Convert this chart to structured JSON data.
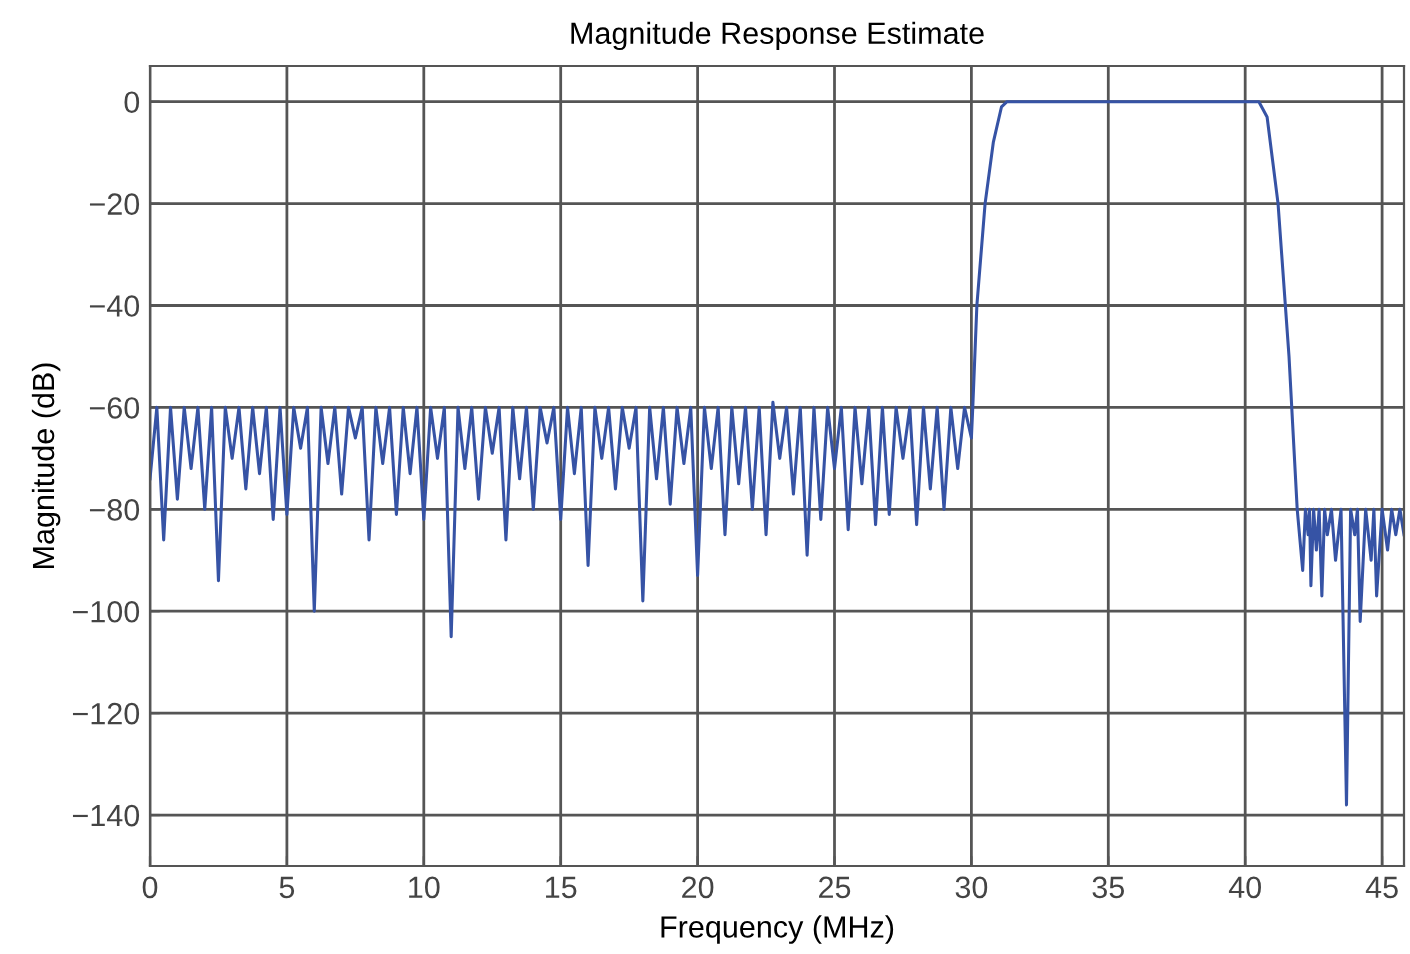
{
  "chart_data": {
    "type": "line",
    "title": "Magnitude Response Estimate",
    "xlabel": "Frequency (MHz)",
    "ylabel": "Magnitude (dB)",
    "x": [
      0.0,
      0.25,
      0.5,
      0.75,
      1.0,
      1.25,
      1.5,
      1.75,
      2.0,
      2.25,
      2.5,
      2.75,
      3.0,
      3.25,
      3.5,
      3.75,
      4.0,
      4.25,
      4.5,
      4.75,
      5.0,
      5.25,
      5.5,
      5.75,
      6.0,
      6.25,
      6.5,
      6.75,
      7.0,
      7.25,
      7.5,
      7.75,
      8.0,
      8.25,
      8.5,
      8.75,
      9.0,
      9.25,
      9.5,
      9.75,
      10.0,
      10.25,
      10.5,
      10.75,
      11.0,
      11.25,
      11.5,
      11.75,
      12.0,
      12.25,
      12.5,
      12.75,
      13.0,
      13.25,
      13.5,
      13.75,
      14.0,
      14.25,
      14.5,
      14.75,
      15.0,
      15.25,
      15.5,
      15.75,
      16.0,
      16.25,
      16.5,
      16.75,
      17.0,
      17.25,
      17.5,
      17.75,
      18.0,
      18.25,
      18.5,
      18.75,
      19.0,
      19.25,
      19.5,
      19.75,
      20.0,
      20.25,
      20.5,
      20.75,
      21.0,
      21.25,
      21.5,
      21.75,
      22.0,
      22.25,
      22.5,
      22.75,
      23.0,
      23.25,
      23.5,
      23.75,
      24.0,
      24.25,
      24.5,
      24.75,
      25.0,
      25.25,
      25.5,
      25.75,
      26.0,
      26.25,
      26.5,
      26.75,
      27.0,
      27.25,
      27.5,
      27.75,
      28.0,
      28.25,
      28.5,
      28.75,
      29.0,
      29.25,
      29.5,
      29.75,
      30.0,
      30.05,
      30.2,
      30.5,
      30.8,
      31.1,
      31.3,
      32.0,
      33.0,
      34.0,
      35.0,
      36.0,
      37.0,
      38.0,
      39.0,
      40.0,
      40.5,
      40.8,
      41.2,
      41.6,
      41.9,
      42.1,
      42.2,
      42.3,
      42.35,
      42.4,
      42.5,
      42.6,
      42.7,
      42.8,
      42.9,
      43.0,
      43.15,
      43.3,
      43.5,
      43.7,
      43.85,
      44.0,
      44.1,
      44.2,
      44.4,
      44.6,
      44.7,
      44.8,
      45.0,
      45.2,
      45.35,
      45.5,
      45.65,
      45.8
    ],
    "values": [
      -74,
      -60,
      -86,
      -60,
      -78,
      -60,
      -72,
      -60,
      -80,
      -60,
      -94,
      -60,
      -70,
      -60,
      -76,
      -60,
      -73,
      -60,
      -82,
      -60,
      -81,
      -60,
      -68,
      -60,
      -100,
      -60,
      -71,
      -60,
      -77,
      -60,
      -66,
      -60,
      -86,
      -60,
      -71,
      -60,
      -81,
      -60,
      -73,
      -60,
      -82,
      -60,
      -70,
      -60,
      -105,
      -60,
      -72,
      -60,
      -78,
      -60,
      -69,
      -60,
      -86,
      -60,
      -74,
      -60,
      -80,
      -60,
      -67,
      -60,
      -82,
      -60,
      -73,
      -60,
      -91,
      -60,
      -70,
      -60,
      -76,
      -60,
      -68,
      -60,
      -98,
      -60,
      -74,
      -60,
      -79,
      -60,
      -71,
      -60,
      -93,
      -60,
      -72,
      -60,
      -85,
      -60,
      -75,
      -60,
      -80,
      -60,
      -85,
      -59,
      -70,
      -60,
      -77,
      -60,
      -89,
      -60,
      -82,
      -60,
      -72,
      -60,
      -84,
      -60,
      -75,
      -60,
      -83,
      -60,
      -81,
      -60,
      -70,
      -60,
      -83,
      -60,
      -76,
      -60,
      -80,
      -60,
      -72,
      -60,
      -66,
      -60,
      -40,
      -20,
      -8,
      -1,
      0,
      0,
      0,
      0,
      0,
      0,
      0,
      0,
      0,
      0,
      0,
      -3,
      -20,
      -50,
      -80,
      -92,
      -80,
      -85,
      -80,
      -95,
      -80,
      -88,
      -80,
      -97,
      -80,
      -85,
      -80,
      -90,
      -80,
      -138,
      -80,
      -85,
      -80,
      -102,
      -80,
      -90,
      -80,
      -97,
      -80,
      -88,
      -80,
      -85,
      -80,
      -85
    ],
    "color": "#3653a5",
    "xlim": [
      0,
      45.8
    ],
    "ylim": [
      -150,
      7
    ],
    "xticks": [
      0,
      5,
      10,
      15,
      20,
      25,
      30,
      35,
      40,
      45
    ],
    "yticks": [
      0,
      {
        "value": -20,
        "label": "−20"
      },
      {
        "value": -40,
        "label": "−40"
      },
      {
        "value": -60,
        "label": "−60"
      },
      {
        "value": -80,
        "label": "−80"
      },
      {
        "value": -100,
        "label": "−100"
      },
      {
        "value": -120,
        "label": "−120"
      },
      {
        "value": -140,
        "label": "−140"
      }
    ],
    "grid": true
  }
}
